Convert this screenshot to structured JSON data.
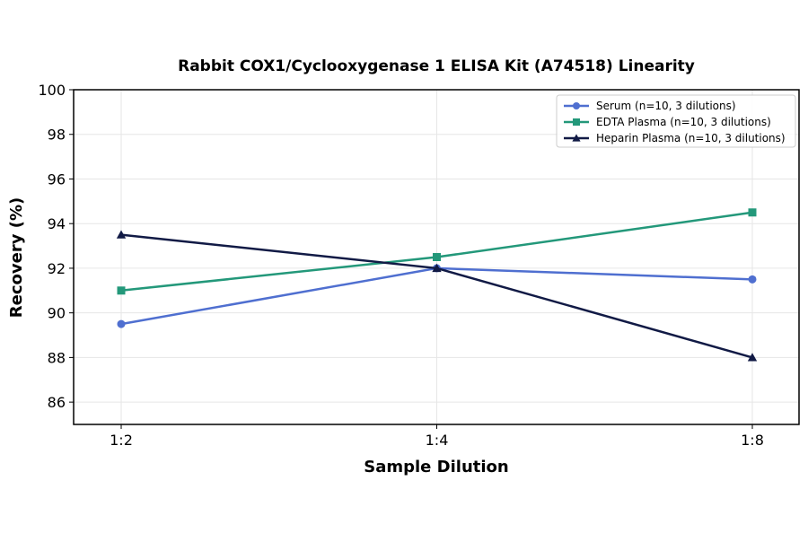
{
  "chart_data": {
    "type": "line",
    "title": "Rabbit COX1/Cyclooxygenase 1 ELISA Kit (A74518) Linearity",
    "xlabel": "Sample Dilution",
    "ylabel": "Recovery (%)",
    "categories": [
      "1:2",
      "1:4",
      "1:8"
    ],
    "ylim": [
      85,
      100
    ],
    "yticks": [
      86,
      88,
      90,
      92,
      94,
      96,
      98,
      100
    ],
    "grid": true,
    "legend_position": "top-right",
    "series": [
      {
        "name": "Serum (n=10, 3 dilutions)",
        "values": [
          89.5,
          92.0,
          91.5
        ],
        "color": "#4f6fd0",
        "marker": "circle"
      },
      {
        "name": "EDTA Plasma (n=10, 3 dilutions)",
        "values": [
          91.0,
          92.5,
          94.5
        ],
        "color": "#23987a",
        "marker": "square"
      },
      {
        "name": "Heparin Plasma (n=10, 3 dilutions)",
        "values": [
          93.5,
          92.0,
          88.0
        ],
        "color": "#111a45",
        "marker": "triangle"
      }
    ]
  }
}
